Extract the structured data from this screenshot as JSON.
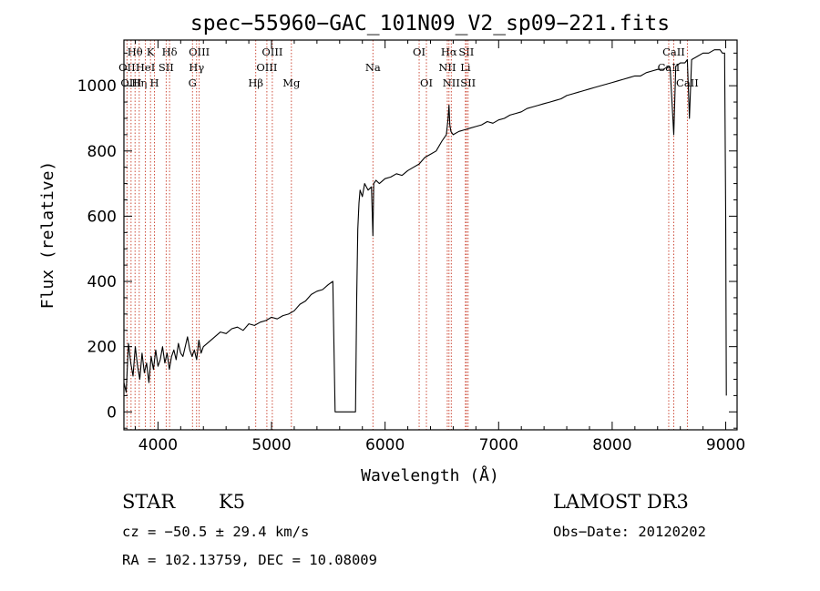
{
  "chart_data": {
    "type": "line",
    "title": "spec−55960−GAC_101N09_V2_sp09−221.fits",
    "xlabel": "Wavelength (Å)",
    "ylabel": "Flux (relative)",
    "xlim": [
      3700,
      9100
    ],
    "ylim": [
      -55,
      1140
    ],
    "xticks": [
      4000,
      5000,
      6000,
      7000,
      8000,
      9000
    ],
    "xtick_labels": [
      "4000",
      "5000",
      "6000",
      "7000",
      "8000",
      "9000"
    ],
    "yticks": [
      0,
      200,
      400,
      600,
      800,
      1000
    ],
    "ytick_labels": [
      "0",
      "200",
      "400",
      "600",
      "800",
      "1000"
    ],
    "series": [
      {
        "name": "flux",
        "x": [
          3700,
          3720,
          3740,
          3760,
          3780,
          3800,
          3820,
          3840,
          3860,
          3880,
          3900,
          3920,
          3940,
          3960,
          3980,
          4000,
          4020,
          4040,
          4060,
          4080,
          4100,
          4120,
          4140,
          4160,
          4180,
          4200,
          4220,
          4240,
          4260,
          4280,
          4300,
          4320,
          4340,
          4360,
          4380,
          4400,
          4450,
          4500,
          4550,
          4600,
          4650,
          4700,
          4750,
          4800,
          4850,
          4900,
          4950,
          5000,
          5050,
          5100,
          5150,
          5200,
          5250,
          5300,
          5350,
          5400,
          5450,
          5500,
          5540,
          5560,
          5570,
          5580,
          5600,
          5650,
          5700,
          5740,
          5750,
          5760,
          5770,
          5780,
          5800,
          5820,
          5850,
          5880,
          5893,
          5900,
          5920,
          5950,
          6000,
          6050,
          6100,
          6150,
          6200,
          6250,
          6300,
          6350,
          6400,
          6450,
          6500,
          6540,
          6555,
          6563,
          6570,
          6580,
          6600,
          6650,
          6700,
          6750,
          6800,
          6850,
          6900,
          6950,
          7000,
          7050,
          7100,
          7150,
          7200,
          7250,
          7300,
          7350,
          7400,
          7450,
          7500,
          7550,
          7600,
          7650,
          7700,
          7750,
          7800,
          7850,
          7900,
          7950,
          8000,
          8050,
          8100,
          8150,
          8200,
          8250,
          8300,
          8350,
          8400,
          8450,
          8498,
          8510,
          8542,
          8560,
          8600,
          8640,
          8662,
          8680,
          8700,
          8750,
          8800,
          8850,
          8900,
          8950,
          8970,
          8990,
          9000,
          9005
        ],
        "values": [
          90,
          60,
          210,
          150,
          110,
          200,
          140,
          100,
          180,
          120,
          150,
          90,
          170,
          130,
          190,
          140,
          160,
          200,
          150,
          180,
          130,
          170,
          190,
          160,
          210,
          180,
          170,
          200,
          230,
          190,
          170,
          190,
          160,
          220,
          180,
          200,
          215,
          230,
          245,
          240,
          255,
          260,
          250,
          270,
          265,
          275,
          280,
          290,
          285,
          295,
          300,
          310,
          330,
          340,
          360,
          370,
          375,
          390,
          400,
          0,
          0,
          0,
          0,
          0,
          0,
          0,
          350,
          560,
          640,
          680,
          660,
          700,
          680,
          690,
          540,
          700,
          710,
          700,
          715,
          720,
          730,
          725,
          740,
          750,
          760,
          780,
          790,
          800,
          830,
          850,
          900,
          940,
          880,
          860,
          850,
          860,
          865,
          870,
          875,
          880,
          890,
          885,
          895,
          900,
          910,
          915,
          920,
          930,
          935,
          940,
          945,
          950,
          955,
          960,
          970,
          975,
          980,
          985,
          990,
          995,
          1000,
          1005,
          1010,
          1015,
          1020,
          1025,
          1030,
          1030,
          1040,
          1045,
          1050,
          1050,
          1060,
          1055,
          850,
          1060,
          1070,
          1070,
          1080,
          900,
          1080,
          1090,
          1100,
          1100,
          1110,
          1110,
          1100,
          1100,
          600,
          50
        ]
      }
    ],
    "spectral_lines": [
      {
        "label": "Hθ",
        "wavelength": 3798,
        "row": 1
      },
      {
        "label": "OII",
        "wavelength": 3727,
        "row": 2
      },
      {
        "label": "OIII",
        "wavelength": 3763,
        "row": 3
      },
      {
        "label": "Hη",
        "wavelength": 3835,
        "row": 3
      },
      {
        "label": "HeI",
        "wavelength": 3889,
        "row": 2
      },
      {
        "label": "K",
        "wavelength": 3934,
        "row": 1
      },
      {
        "label": "H",
        "wavelength": 3969,
        "row": 3
      },
      {
        "label": "SII",
        "wavelength": 4072,
        "row": 2
      },
      {
        "label": "Hδ",
        "wavelength": 4102,
        "row": 1
      },
      {
        "label": "OIII",
        "wavelength": 4363,
        "row": 1
      },
      {
        "label": "Hγ",
        "wavelength": 4340,
        "row": 2
      },
      {
        "label": "G",
        "wavelength": 4304,
        "row": 3
      },
      {
        "label": "Hβ",
        "wavelength": 4861,
        "row": 3
      },
      {
        "label": "OIII",
        "wavelength": 5007,
        "row": 1
      },
      {
        "label": "OIII",
        "wavelength": 4959,
        "row": 2
      },
      {
        "label": "Mg",
        "wavelength": 5175,
        "row": 3
      },
      {
        "label": "Na",
        "wavelength": 5893,
        "row": 2
      },
      {
        "label": "OI",
        "wavelength": 6300,
        "row": 1
      },
      {
        "label": "OI",
        "wavelength": 6364,
        "row": 3
      },
      {
        "label": "Hα",
        "wavelength": 6563,
        "row": 1
      },
      {
        "label": "NII",
        "wavelength": 6548,
        "row": 2
      },
      {
        "label": "NII",
        "wavelength": 6583,
        "row": 3
      },
      {
        "label": "SII",
        "wavelength": 6716,
        "row": 1
      },
      {
        "label": "Li",
        "wavelength": 6708,
        "row": 2
      },
      {
        "label": "SII",
        "wavelength": 6731,
        "row": 3
      },
      {
        "label": "CaII",
        "wavelength": 8498,
        "row": 2
      },
      {
        "label": "CaII",
        "wavelength": 8542,
        "row": 1
      },
      {
        "label": "CaII",
        "wavelength": 8662,
        "row": 3
      }
    ],
    "line_color": "#c83c28",
    "grid": false
  },
  "info": {
    "class": "STAR",
    "subclass": "K5",
    "survey": "LAMOST DR3",
    "cz": "cz = −50.5 ± 29.4 km/s",
    "obs_date": "Obs−Date: 20120202",
    "coords": "RA = 102.13759, DEC =  10.08009"
  }
}
